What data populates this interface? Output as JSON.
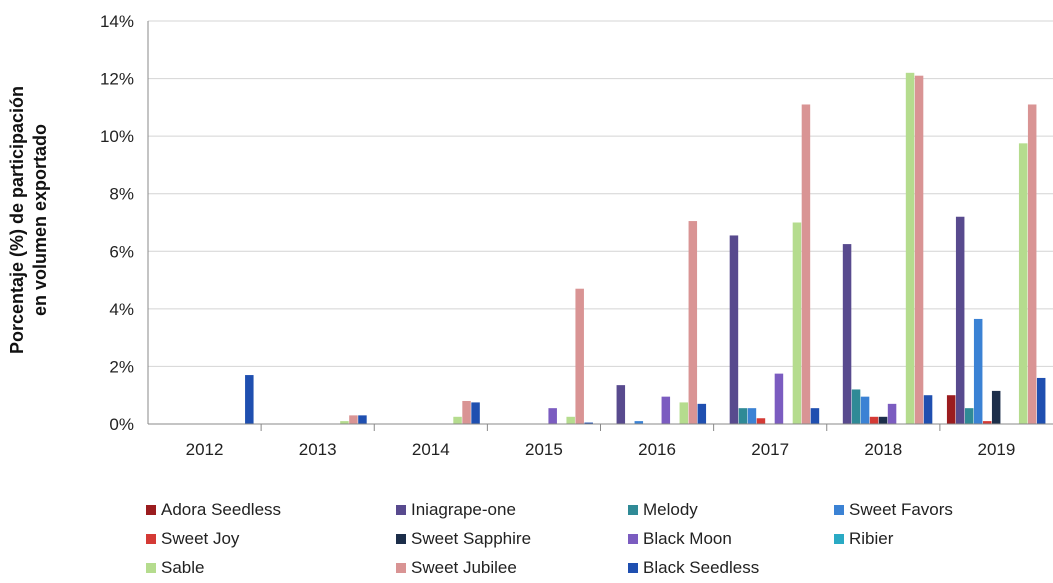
{
  "chart_data": {
    "type": "bar",
    "xlabel": "",
    "ylabel": [
      "Porcentaje (%) de participación",
      "en volumen exportado"
    ],
    "ylim": [
      0,
      14
    ],
    "yticks": [
      "0%",
      "2%",
      "4%",
      "6%",
      "8%",
      "10%",
      "12%",
      "14%"
    ],
    "grid": true,
    "legend_position": "bottom",
    "categories": [
      "2012",
      "2013",
      "2014",
      "2015",
      "2016",
      "2017",
      "2018",
      "2019"
    ],
    "series": [
      {
        "name": "Adora Seedless",
        "color": "#9b1c1f",
        "values": [
          0,
          0,
          0,
          0,
          0,
          0,
          0,
          1.0
        ]
      },
      {
        "name": "Iniagrape-one",
        "color": "#584a8e",
        "values": [
          0,
          0,
          0,
          0,
          1.35,
          6.55,
          6.25,
          7.2
        ]
      },
      {
        "name": "Melody",
        "color": "#2f8a96",
        "values": [
          0,
          0,
          0,
          0,
          0,
          0.55,
          1.2,
          0.55
        ]
      },
      {
        "name": "Sweet Favors",
        "color": "#3b82d4",
        "values": [
          0,
          0,
          0,
          0,
          0.1,
          0.55,
          0.95,
          3.65
        ]
      },
      {
        "name": "Sweet Joy",
        "color": "#d43a35",
        "values": [
          0,
          0,
          0,
          0,
          0,
          0.2,
          0.25,
          0.1
        ]
      },
      {
        "name": "Sweet Sapphire",
        "color": "#1c2e4a",
        "values": [
          0,
          0,
          0,
          0,
          0,
          0,
          0.25,
          1.15
        ]
      },
      {
        "name": "Black Moon",
        "color": "#7b5cc0",
        "values": [
          0,
          0,
          0,
          0.55,
          0.95,
          1.75,
          0.7,
          0
        ]
      },
      {
        "name": "Ribier",
        "color": "#2aaac4",
        "values": [
          0,
          0,
          0,
          0,
          0,
          0,
          0,
          0
        ]
      },
      {
        "name": "Sable",
        "color": "#b5dc8e",
        "values": [
          0,
          0.1,
          0.25,
          0.25,
          0.75,
          7.0,
          12.2,
          9.75
        ]
      },
      {
        "name": "Sweet Jubilee",
        "color": "#d99494",
        "values": [
          0,
          0.3,
          0.8,
          4.7,
          7.05,
          11.1,
          12.1,
          11.1
        ]
      },
      {
        "name": "Black Seedless",
        "color": "#1f4fb0",
        "values": [
          1.7,
          0.3,
          0.75,
          0.05,
          0.7,
          0.55,
          1.0,
          1.6
        ]
      }
    ]
  }
}
